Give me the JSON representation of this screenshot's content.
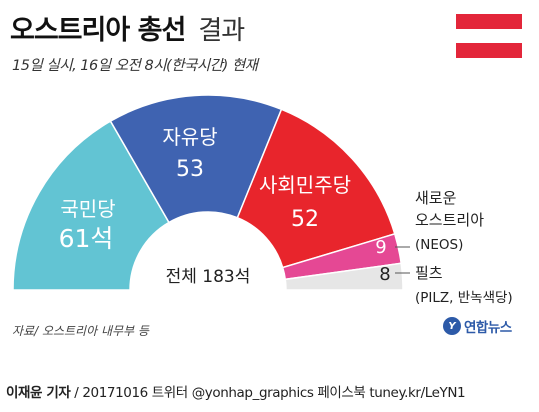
{
  "header": {
    "title": "오스트리아 총선",
    "title_suffix": "결과",
    "subtitle": "15일 실시, 16일 오전 8시(한국시간) 현재"
  },
  "flag": {
    "colors": [
      "#e3263a",
      "#ffffff",
      "#e3263a"
    ]
  },
  "chart_data": {
    "type": "pie",
    "variant": "parliament-semicircle",
    "total_label": "전체 183석",
    "total": 183,
    "series": [
      {
        "name": "국민당",
        "value": 61,
        "value_label": "61석",
        "color": "#62c4d3"
      },
      {
        "name": "자유당",
        "value": 53,
        "value_label": "53",
        "color": "#3f63b1"
      },
      {
        "name": "사회민주당",
        "value": 52,
        "value_label": "52",
        "color": "#e8252c"
      },
      {
        "name_lines": [
          "새로운",
          "오스트리아",
          "(NEOS)"
        ],
        "value": 9,
        "value_label": "9",
        "color": "#e54894"
      },
      {
        "name_lines": [
          "필츠",
          "(PILZ, 반녹색당)"
        ],
        "value": 8,
        "value_label": "8",
        "color": "#e6e6e6"
      }
    ]
  },
  "footer": {
    "source": "자료/ 오스트리아 내무부 등",
    "logo_mark": "Y",
    "logo_text": "연합뉴스"
  },
  "credit": {
    "author": "이재윤 기자",
    "rest": " / 20171016   트위터 @yonhap_graphics  페이스북 tuney.kr/LeYN1"
  }
}
